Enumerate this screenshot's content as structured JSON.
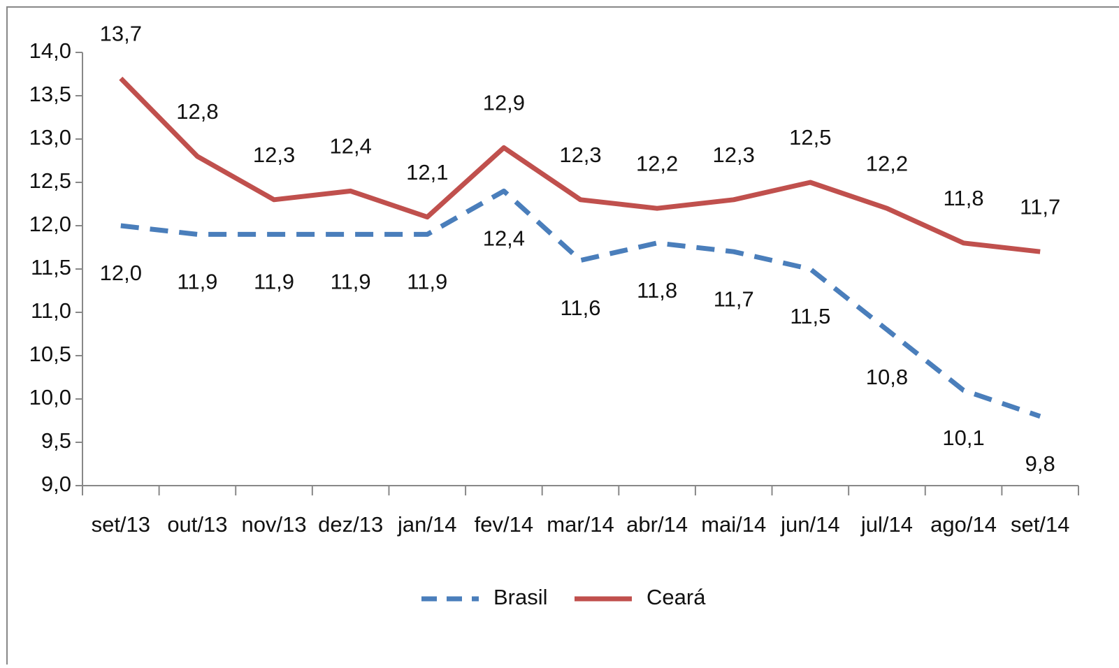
{
  "chart_data": {
    "type": "line",
    "categories": [
      "set/13",
      "out/13",
      "nov/13",
      "dez/13",
      "jan/14",
      "fev/14",
      "mar/14",
      "abr/14",
      "mai/14",
      "jun/14",
      "jul/14",
      "ago/14",
      "set/14"
    ],
    "series": [
      {
        "name": "Brasil",
        "color": "#4a7ebb",
        "dashed": true,
        "values": [
          12.0,
          11.9,
          11.9,
          11.9,
          11.9,
          12.4,
          11.6,
          11.8,
          11.7,
          11.5,
          10.8,
          10.1,
          9.8
        ],
        "value_labels": [
          "12,0",
          "11,9",
          "11,9",
          "11,9",
          "11,9",
          "12,4",
          "11,6",
          "11,8",
          "11,7",
          "11,5",
          "10,8",
          "10,1",
          "9,8"
        ]
      },
      {
        "name": "Ceará",
        "color": "#c0504d",
        "dashed": false,
        "values": [
          13.7,
          12.8,
          12.3,
          12.4,
          12.1,
          12.9,
          12.3,
          12.2,
          12.3,
          12.5,
          12.2,
          11.8,
          11.7
        ],
        "value_labels": [
          "13,7",
          "12,8",
          "12,3",
          "12,4",
          "12,1",
          "12,9",
          "12,3",
          "12,2",
          "12,3",
          "12,5",
          "12,2",
          "11,8",
          "11,7"
        ]
      }
    ],
    "ylim": [
      9.0,
      14.0
    ],
    "yticks": [
      {
        "value": 9.0,
        "label": "9,0"
      },
      {
        "value": 9.5,
        "label": "9,5"
      },
      {
        "value": 10.0,
        "label": "10,0"
      },
      {
        "value": 10.5,
        "label": "10,5"
      },
      {
        "value": 11.0,
        "label": "11,0"
      },
      {
        "value": 11.5,
        "label": "11,5"
      },
      {
        "value": 12.0,
        "label": "12,0"
      },
      {
        "value": 12.5,
        "label": "12,5"
      },
      {
        "value": 13.0,
        "label": "13,0"
      },
      {
        "value": 13.5,
        "label": "13,5"
      },
      {
        "value": 14.0,
        "label": "14,0"
      }
    ],
    "grid": false,
    "legend": "bottom"
  }
}
